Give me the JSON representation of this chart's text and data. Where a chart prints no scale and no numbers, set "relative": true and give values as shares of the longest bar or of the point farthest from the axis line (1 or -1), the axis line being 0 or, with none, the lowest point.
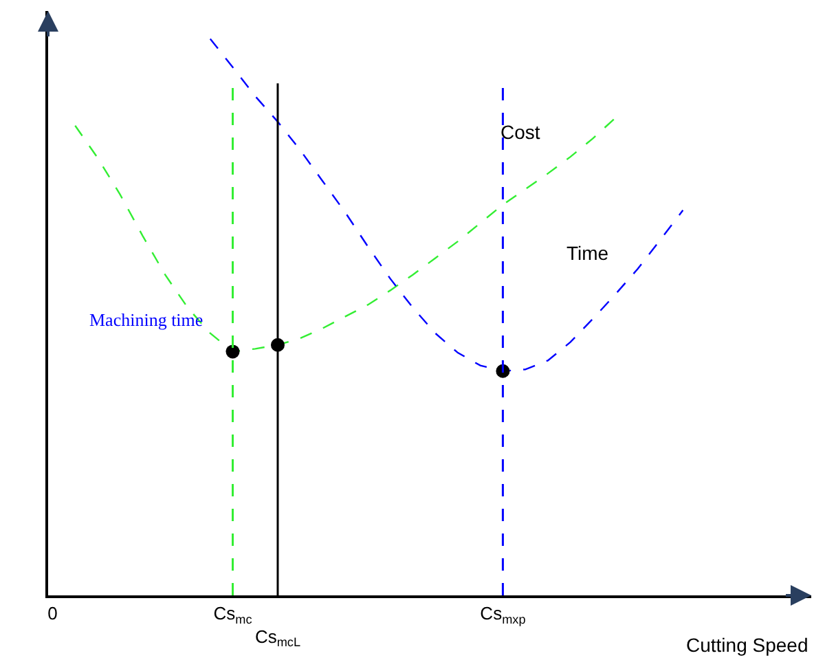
{
  "chart_data": {
    "type": "line",
    "relative": true,
    "xlabel": "Cutting Speed",
    "categories": [
      "0",
      null,
      null,
      null,
      null,
      null,
      null,
      null,
      "Cs$_{mc}$",
      null,
      "Cs$_{mcL}$",
      null,
      null,
      null,
      null,
      null,
      null,
      null,
      null,
      null,
      "Cs$_{mxp}$",
      null,
      null,
      null,
      null,
      null,
      null,
      null,
      null,
      null,
      null,
      null,
      null,
      null
    ],
    "series": [
      {
        "name": "Cost",
        "color": "#33ee33",
        "values": [
          null,
          0.844,
          0.786,
          0.72,
          0.646,
          0.576,
          0.517,
          0.471,
          0.438,
          0.443,
          0.45,
          0.462,
          0.48,
          0.501,
          0.522,
          0.548,
          0.576,
          0.606,
          0.636,
          0.669,
          0.702,
          0.73,
          0.758,
          0.788,
          0.821,
          0.858,
          null,
          null,
          null,
          null,
          null,
          null,
          null,
          null
        ]
      },
      {
        "name": "Time",
        "color": "#0000ff",
        "values": [
          null,
          null,
          null,
          null,
          null,
          null,
          null,
          1.0,
          0.949,
          0.897,
          0.851,
          0.8,
          0.744,
          0.688,
          0.627,
          0.569,
          0.517,
          0.471,
          0.436,
          0.413,
          0.403,
          0.406,
          0.422,
          0.455,
          0.497,
          0.541,
          0.587,
          0.639,
          0.692,
          null,
          null,
          null,
          null,
          null
        ]
      },
      {
        "type": "scatter",
        "marker": "circle",
        "color": "#000000",
        "x": [
          "Cs$_{mc}$",
          "Cs$_{mcL}$",
          "Cs$_{mxp}$"
        ],
        "values": [
          0.438,
          0.45,
          0.403
        ]
      }
    ],
    "ref_lines": [
      {
        "axis": "x",
        "value": "Cs$_{mc}$",
        "color": "#33ee33",
        "line_style": "dashed"
      },
      {
        "axis": "x",
        "value": "Cs$_{mcL}$",
        "color": "#000000",
        "line_style": "solid"
      },
      {
        "axis": "x",
        "value": "Cs$_{mxp}$",
        "color": "#0000ff",
        "line_style": "dashed"
      }
    ],
    "annotations": [
      "Machining time"
    ],
    "line_style": "dashed",
    "marker": "none",
    "legend": false
  }
}
